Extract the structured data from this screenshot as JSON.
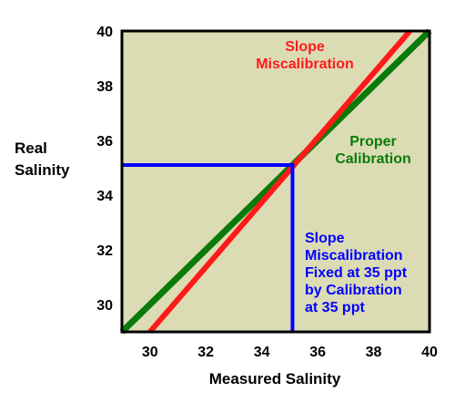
{
  "chart_data": {
    "type": "line",
    "title": "",
    "xlabel": "Measured Salinity",
    "ylabel": [
      "Real",
      "Salinity"
    ],
    "xlim": [
      29,
      40
    ],
    "ylim": [
      29,
      40
    ],
    "xticks": [
      30,
      32,
      34,
      36,
      38,
      40
    ],
    "yticks": [
      30,
      32,
      34,
      36,
      38,
      40
    ],
    "grid": false,
    "plot_background": "#dcdcb4",
    "series": [
      {
        "name": "Proper Calibration",
        "color": "#0a7a0a",
        "points": [
          [
            29,
            29
          ],
          [
            40,
            40
          ]
        ]
      },
      {
        "name": "Slope Miscalibration",
        "color": "#ff1a1a",
        "points": [
          [
            30,
            29
          ],
          [
            39.3,
            40
          ]
        ]
      },
      {
        "name": "Slope Miscalibration Fixed at 35 ppt by Calibration at 35 ppt",
        "color": "#0000ff",
        "points": [
          [
            29,
            35.1
          ],
          [
            35.1,
            35.1
          ],
          [
            35.1,
            29
          ]
        ]
      }
    ],
    "annotations": [
      {
        "lines": [
          "Slope",
          "Miscalibration"
        ],
        "color": "#ff1a1a"
      },
      {
        "lines": [
          "Proper",
          "Calibration"
        ],
        "color": "#0a7a0a"
      },
      {
        "lines": [
          "Slope",
          "Miscalibration",
          "Fixed at 35 ppt",
          "by Calibration",
          "at 35 ppt"
        ],
        "color": "#0000ff"
      }
    ]
  }
}
